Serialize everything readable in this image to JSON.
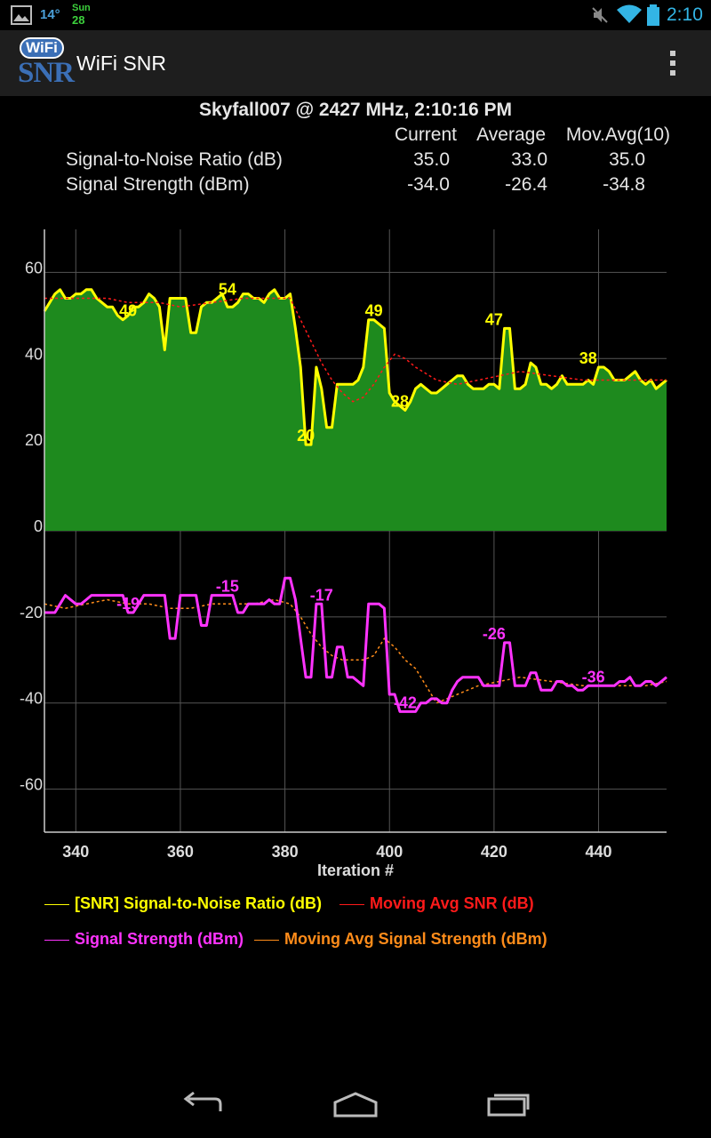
{
  "status_bar": {
    "temperature": "14°",
    "day": "Sun",
    "date": "28",
    "time": "2:10"
  },
  "app_bar": {
    "logo_top": "WiFi",
    "logo_bottom": "SNR",
    "title": "WiFi SNR",
    "menu_icon": "overflow-menu-icon"
  },
  "summary": {
    "header": "Skyfall007 @ 2427 MHz, 2:10:16 PM",
    "columns": [
      "Current",
      "Average",
      "Mov.Avg(10)"
    ],
    "rows": [
      {
        "label": "Signal-to-Noise Ratio (dB)",
        "current": "35.0",
        "average": "33.0",
        "movavg": "35.0"
      },
      {
        "label": "Signal Strength (dBm)",
        "current": "-34.0",
        "average": "-26.4",
        "movavg": "-34.8"
      }
    ]
  },
  "chart_data": {
    "type": "line",
    "xlabel": "Iteration #",
    "ylabel": "",
    "xlim": [
      334,
      453
    ],
    "ylim": [
      -70,
      70
    ],
    "x_ticks": [
      340,
      360,
      380,
      400,
      420,
      440
    ],
    "y_ticks": [
      60,
      40,
      20,
      0,
      -20,
      -40,
      -60
    ],
    "grid": true,
    "legend_position": "bottom",
    "colors": {
      "snr": "#ffff00",
      "snr_fill": "#1e8a1e",
      "snr_avg": "#ff1a1a",
      "signal": "#ff33ff",
      "signal_avg": "#ff8c1a"
    },
    "series": [
      {
        "name": "[SNR] Signal-to-Noise Ratio (dB)",
        "x": [
          334,
          335,
          336,
          337,
          338,
          339,
          340,
          341,
          342,
          343,
          344,
          345,
          346,
          347,
          348,
          349,
          350,
          351,
          352,
          353,
          354,
          355,
          356,
          357,
          358,
          359,
          360,
          361,
          362,
          363,
          364,
          365,
          366,
          367,
          368,
          369,
          370,
          371,
          372,
          373,
          374,
          375,
          376,
          377,
          378,
          379,
          380,
          381,
          382,
          383,
          384,
          385,
          386,
          387,
          388,
          389,
          390,
          391,
          392,
          393,
          394,
          395,
          396,
          397,
          398,
          399,
          400,
          401,
          402,
          403,
          404,
          405,
          406,
          407,
          408,
          409,
          410,
          411,
          412,
          413,
          414,
          415,
          416,
          417,
          418,
          419,
          420,
          421,
          422,
          423,
          424,
          425,
          426,
          427,
          428,
          429,
          430,
          431,
          432,
          433,
          434,
          435,
          436,
          437,
          438,
          439,
          440,
          441,
          442,
          443,
          444,
          445,
          446,
          447,
          448,
          449,
          450,
          451,
          452,
          453
        ],
        "values": [
          51,
          53,
          55,
          56,
          54,
          54,
          55,
          55,
          56,
          56,
          54,
          53,
          52,
          52,
          50,
          49,
          50,
          52,
          52,
          53,
          55,
          54,
          52,
          42,
          54,
          54,
          54,
          54,
          46,
          46,
          52,
          53,
          53,
          54,
          55,
          52,
          52,
          53,
          55,
          55,
          54,
          54,
          53,
          55,
          56,
          54,
          54,
          55,
          47,
          38,
          20,
          20,
          38,
          33,
          24,
          24,
          34,
          34,
          34,
          34,
          35,
          38,
          49,
          49,
          48,
          47,
          32,
          30,
          29,
          28,
          30,
          33,
          34,
          33,
          32,
          32,
          33,
          34,
          35,
          36,
          36,
          34,
          33,
          33,
          33,
          34,
          34,
          33,
          47,
          47,
          33,
          33,
          34,
          39,
          38,
          34,
          34,
          33,
          34,
          36,
          34,
          34,
          34,
          34,
          35,
          34,
          38,
          38,
          37,
          35,
          35,
          35,
          36,
          37,
          35,
          34,
          35,
          33,
          34,
          35
        ],
        "labels": [
          [
            "350",
            "49"
          ],
          [
            "369",
            "54"
          ],
          [
            "384",
            "20"
          ],
          [
            "397",
            "49"
          ],
          [
            "402",
            "28"
          ],
          [
            "420",
            "47"
          ],
          [
            "438",
            "38"
          ]
        ]
      },
      {
        "name": "Moving Avg SNR (dB)",
        "x": [
          334,
          340,
          346,
          350,
          356,
          360,
          366,
          372,
          378,
          381,
          383,
          385,
          387,
          389,
          391,
          393,
          395,
          397,
          399,
          401,
          403,
          405,
          409,
          413,
          417,
          421,
          425,
          431,
          437,
          443,
          449,
          453
        ],
        "values": [
          54,
          54,
          54,
          53,
          53,
          52,
          53,
          54,
          54,
          54,
          49,
          44,
          39,
          35,
          32,
          30,
          31,
          34,
          38,
          41,
          40,
          38,
          35,
          34,
          35,
          36,
          37,
          36,
          35,
          35,
          35,
          35
        ]
      },
      {
        "name": "Signal Strength (dBm)",
        "x": [
          334,
          335,
          336,
          337,
          338,
          339,
          340,
          341,
          342,
          343,
          344,
          345,
          346,
          347,
          348,
          349,
          350,
          351,
          352,
          353,
          354,
          355,
          356,
          357,
          358,
          359,
          360,
          361,
          362,
          363,
          364,
          365,
          366,
          367,
          368,
          369,
          370,
          371,
          372,
          373,
          374,
          375,
          376,
          377,
          378,
          379,
          380,
          381,
          382,
          383,
          384,
          385,
          386,
          387,
          388,
          389,
          390,
          391,
          392,
          393,
          394,
          395,
          396,
          397,
          398,
          399,
          400,
          401,
          402,
          403,
          404,
          405,
          406,
          407,
          408,
          409,
          410,
          411,
          412,
          413,
          414,
          415,
          416,
          417,
          418,
          419,
          420,
          421,
          422,
          423,
          424,
          425,
          426,
          427,
          428,
          429,
          430,
          431,
          432,
          433,
          434,
          435,
          436,
          437,
          438,
          439,
          440,
          441,
          442,
          443,
          444,
          445,
          446,
          447,
          448,
          449,
          450,
          451,
          452,
          453
        ],
        "values": [
          -19,
          -19,
          -19,
          -17,
          -15,
          -16,
          -17,
          -17,
          -16,
          -15,
          -15,
          -15,
          -15,
          -15,
          -15,
          -15,
          -19,
          -19,
          -17,
          -15,
          -15,
          -15,
          -15,
          -15,
          -25,
          -25,
          -15,
          -15,
          -15,
          -15,
          -22,
          -22,
          -15,
          -15,
          -15,
          -15,
          -15,
          -19,
          -19,
          -17,
          -17,
          -17,
          -17,
          -16,
          -17,
          -17,
          -11,
          -11,
          -16,
          -25,
          -34,
          -34,
          -17,
          -17,
          -34,
          -34,
          -27,
          -27,
          -34,
          -34,
          -35,
          -36,
          -17,
          -17,
          -17,
          -18,
          -38,
          -38,
          -42,
          -42,
          -42,
          -42,
          -40,
          -40,
          -39,
          -39,
          -40,
          -40,
          -37,
          -35,
          -34,
          -34,
          -34,
          -34,
          -36,
          -36,
          -36,
          -36,
          -26,
          -26,
          -36,
          -36,
          -36,
          -33,
          -33,
          -37,
          -37,
          -37,
          -35,
          -35,
          -36,
          -36,
          -37,
          -37,
          -36,
          -36,
          -36,
          -36,
          -36,
          -36,
          -35,
          -35,
          -34,
          -36,
          -36,
          -35,
          -35,
          -36,
          -35,
          -34
        ],
        "labels": [
          [
            "350",
            "-19"
          ],
          [
            "369",
            "-15"
          ],
          [
            "387",
            "-17"
          ],
          [
            "403",
            "-42"
          ],
          [
            "420",
            "-26"
          ],
          [
            "439",
            "-36"
          ]
        ]
      },
      {
        "name": "Moving Avg Signal Strength (dBm)",
        "x": [
          334,
          338,
          342,
          346,
          350,
          354,
          358,
          362,
          366,
          370,
          374,
          378,
          381,
          383,
          385,
          387,
          389,
          391,
          393,
          395,
          397,
          399,
          401,
          403,
          405,
          407,
          409,
          413,
          417,
          421,
          425,
          431,
          437,
          443,
          449,
          453
        ],
        "values": [
          -17,
          -18,
          -17,
          -16,
          -17,
          -17,
          -18,
          -18,
          -17,
          -17,
          -17,
          -16,
          -17,
          -20,
          -24,
          -27,
          -29,
          -30,
          -30,
          -30,
          -29,
          -25,
          -27,
          -30,
          -32,
          -36,
          -40,
          -38,
          -36,
          -35,
          -34,
          -35,
          -36,
          -36,
          -36,
          -35
        ]
      }
    ]
  },
  "legend": [
    {
      "label": "[SNR] Signal-to-Noise Ratio (dB)",
      "color": "#ffff00"
    },
    {
      "label": "Moving Avg SNR (dB)",
      "color": "#ff1a1a"
    },
    {
      "label": "Signal Strength (dBm)",
      "color": "#ff33ff"
    },
    {
      "label": "Moving Avg Signal Strength (dBm)",
      "color": "#ff8c1a"
    }
  ],
  "nav_bar": {
    "back": "back-icon",
    "home": "home-icon",
    "recents": "recents-icon"
  }
}
